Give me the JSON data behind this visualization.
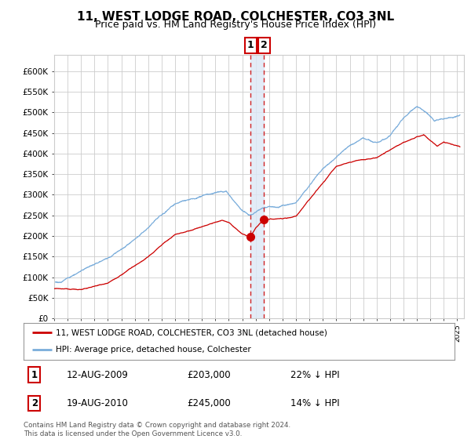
{
  "title": "11, WEST LODGE ROAD, COLCHESTER, CO3 3NL",
  "subtitle": "Price paid vs. HM Land Registry's House Price Index (HPI)",
  "legend_label_red": "11, WEST LODGE ROAD, COLCHESTER, CO3 3NL (detached house)",
  "legend_label_blue": "HPI: Average price, detached house, Colchester",
  "transaction1_date": "12-AUG-2009",
  "transaction1_price": 203000,
  "transaction1_hpi": "22% ↓ HPI",
  "transaction2_date": "19-AUG-2010",
  "transaction2_price": 245000,
  "transaction2_hpi": "14% ↓ HPI",
  "footer": "Contains HM Land Registry data © Crown copyright and database right 2024.\nThis data is licensed under the Open Government Licence v3.0.",
  "red_color": "#cc0000",
  "blue_color": "#7aaddb",
  "grid_color": "#cccccc",
  "background_color": "#ffffff",
  "ylim_min": 0,
  "ylim_max": 640000,
  "transaction1_year": 2009.62,
  "transaction2_year": 2010.62,
  "span_color": "#dde8f5",
  "title_fontsize": 11,
  "subtitle_fontsize": 9
}
